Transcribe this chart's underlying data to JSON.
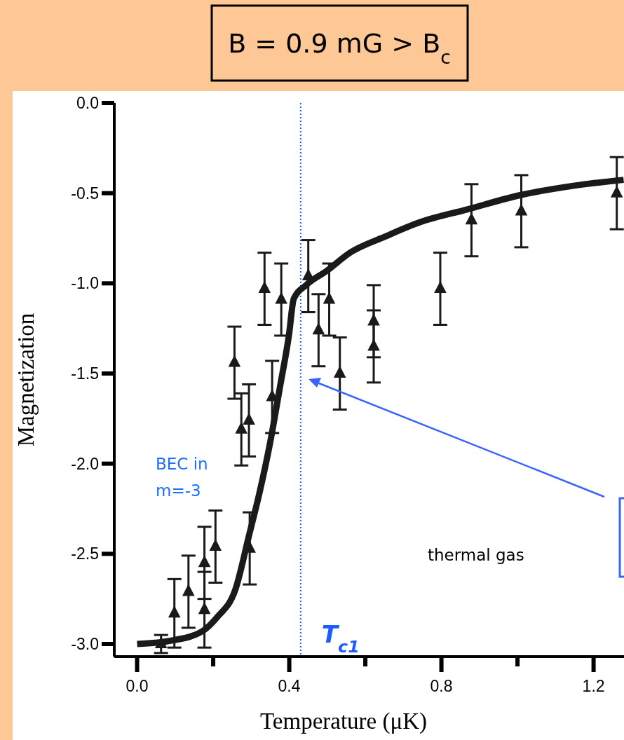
{
  "chart_data": {
    "type": "scatter",
    "title": "B = 0.9 mG > B$_{c}$",
    "xlabel": "Temperature (μK)",
    "ylabel": "Magnetization",
    "marker": "triangle",
    "xlim": [
      -0.06,
      1.28
    ],
    "ylim": [
      -3.07,
      0
    ],
    "xticks": [
      {
        "value": 0,
        "label": "0.0"
      },
      {
        "value": 0.2,
        "label": null
      },
      {
        "value": 0.4,
        "label": "0.4"
      },
      {
        "value": 0.6,
        "label": null
      },
      {
        "value": 0.8,
        "label": "0.8"
      },
      {
        "value": 1.0,
        "label": null
      },
      {
        "value": 1.2,
        "label": "1.2"
      }
    ],
    "yticks": [
      {
        "value": 0,
        "label": "0.0"
      },
      -0.5,
      {
        "value": -1,
        "label": "-1.0"
      },
      -1.5,
      {
        "value": -2,
        "label": "-2.0"
      },
      -2.5,
      {
        "value": -3,
        "label": "-3.0"
      }
    ],
    "series": [
      {
        "color": "#1a1a1a",
        "x": [
          0.063,
          0.098,
          0.135,
          0.177,
          0.177,
          0.206,
          0.256,
          0.274,
          0.294,
          0.296,
          0.335,
          0.355,
          0.379,
          0.45,
          0.477,
          0.505,
          0.533,
          0.622,
          0.622,
          0.797,
          0.879,
          1.01,
          1.261
        ],
        "values": [
          -3.0,
          -2.83,
          -2.71,
          -2.55,
          -2.81,
          -2.46,
          -1.44,
          -1.81,
          -1.76,
          -2.47,
          -1.03,
          -1.63,
          -1.09,
          -0.96,
          -1.26,
          -1.09,
          -1.5,
          -1.21,
          -1.35,
          -1.03,
          -0.65,
          -0.6,
          -0.5
        ],
        "errors": [
          0.05,
          0.19,
          0.2,
          0.2,
          0.21,
          0.2,
          0.2,
          0.2,
          0.2,
          0.2,
          0.2,
          0.2,
          0.2,
          0.2,
          0.2,
          0.2,
          0.2,
          0.2,
          0.2,
          0.2,
          0.2,
          0.2,
          0.2
        ]
      },
      {
        "type": "line",
        "marker": "none",
        "color": "#1a1a1a",
        "x": [
          0,
          0.093,
          0.171,
          0.211,
          0.258,
          0.294,
          0.323,
          0.35,
          0.376,
          0.399,
          0.412,
          0.444,
          0.499,
          0.56,
          0.653,
          0.745,
          0.868,
          1.009,
          1.144,
          1.279
        ],
        "values": [
          -3.0,
          -2.98,
          -2.93,
          -2.85,
          -2.7,
          -2.4,
          -2.15,
          -1.88,
          -1.57,
          -1.29,
          -1.085,
          -1.01,
          -0.93,
          -0.83,
          -0.74,
          -0.66,
          -0.59,
          -0.51,
          -0.46,
          -0.426
        ]
      }
    ],
    "ref_lines": [
      {
        "axis": "x",
        "value": 0.43,
        "label": "T$_{c1}$",
        "color": "#1f5cff",
        "line_style": "dotted"
      }
    ],
    "annotations": [
      "BEC in\nm=-3",
      "thermal gas"
    ]
  }
}
